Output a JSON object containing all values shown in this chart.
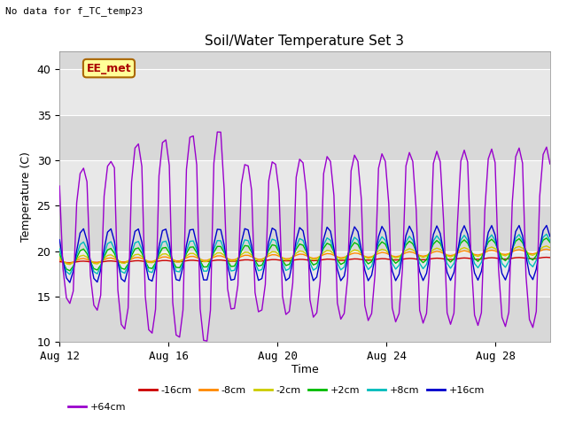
{
  "title": "Soil/Water Temperature Set 3",
  "subtitle": "No data for f_TC_temp23",
  "ylabel": "Temperature (C)",
  "xlabel": "Time",
  "ylim": [
    10,
    42
  ],
  "yticks": [
    10,
    15,
    20,
    25,
    30,
    35,
    40
  ],
  "outer_bg": "#d8d8d8",
  "inner_bg": "#e8e8e8",
  "annotation_label": "EE_met",
  "annotation_bg": "#ffff99",
  "annotation_border": "#aa6600",
  "series_colors": {
    "-16cm": "#cc0000",
    "-8cm": "#ff8800",
    "-2cm": "#cccc00",
    "+2cm": "#00bb00",
    "+8cm": "#00bbbb",
    "+16cm": "#0000cc",
    "+64cm": "#9900cc"
  },
  "xtick_labels": [
    "Aug 12",
    "Aug 16",
    "Aug 20",
    "Aug 24",
    "Aug 28"
  ],
  "xtick_positions": [
    0,
    4,
    8,
    12,
    16
  ],
  "n_days": 18,
  "pts_per_day": 8
}
